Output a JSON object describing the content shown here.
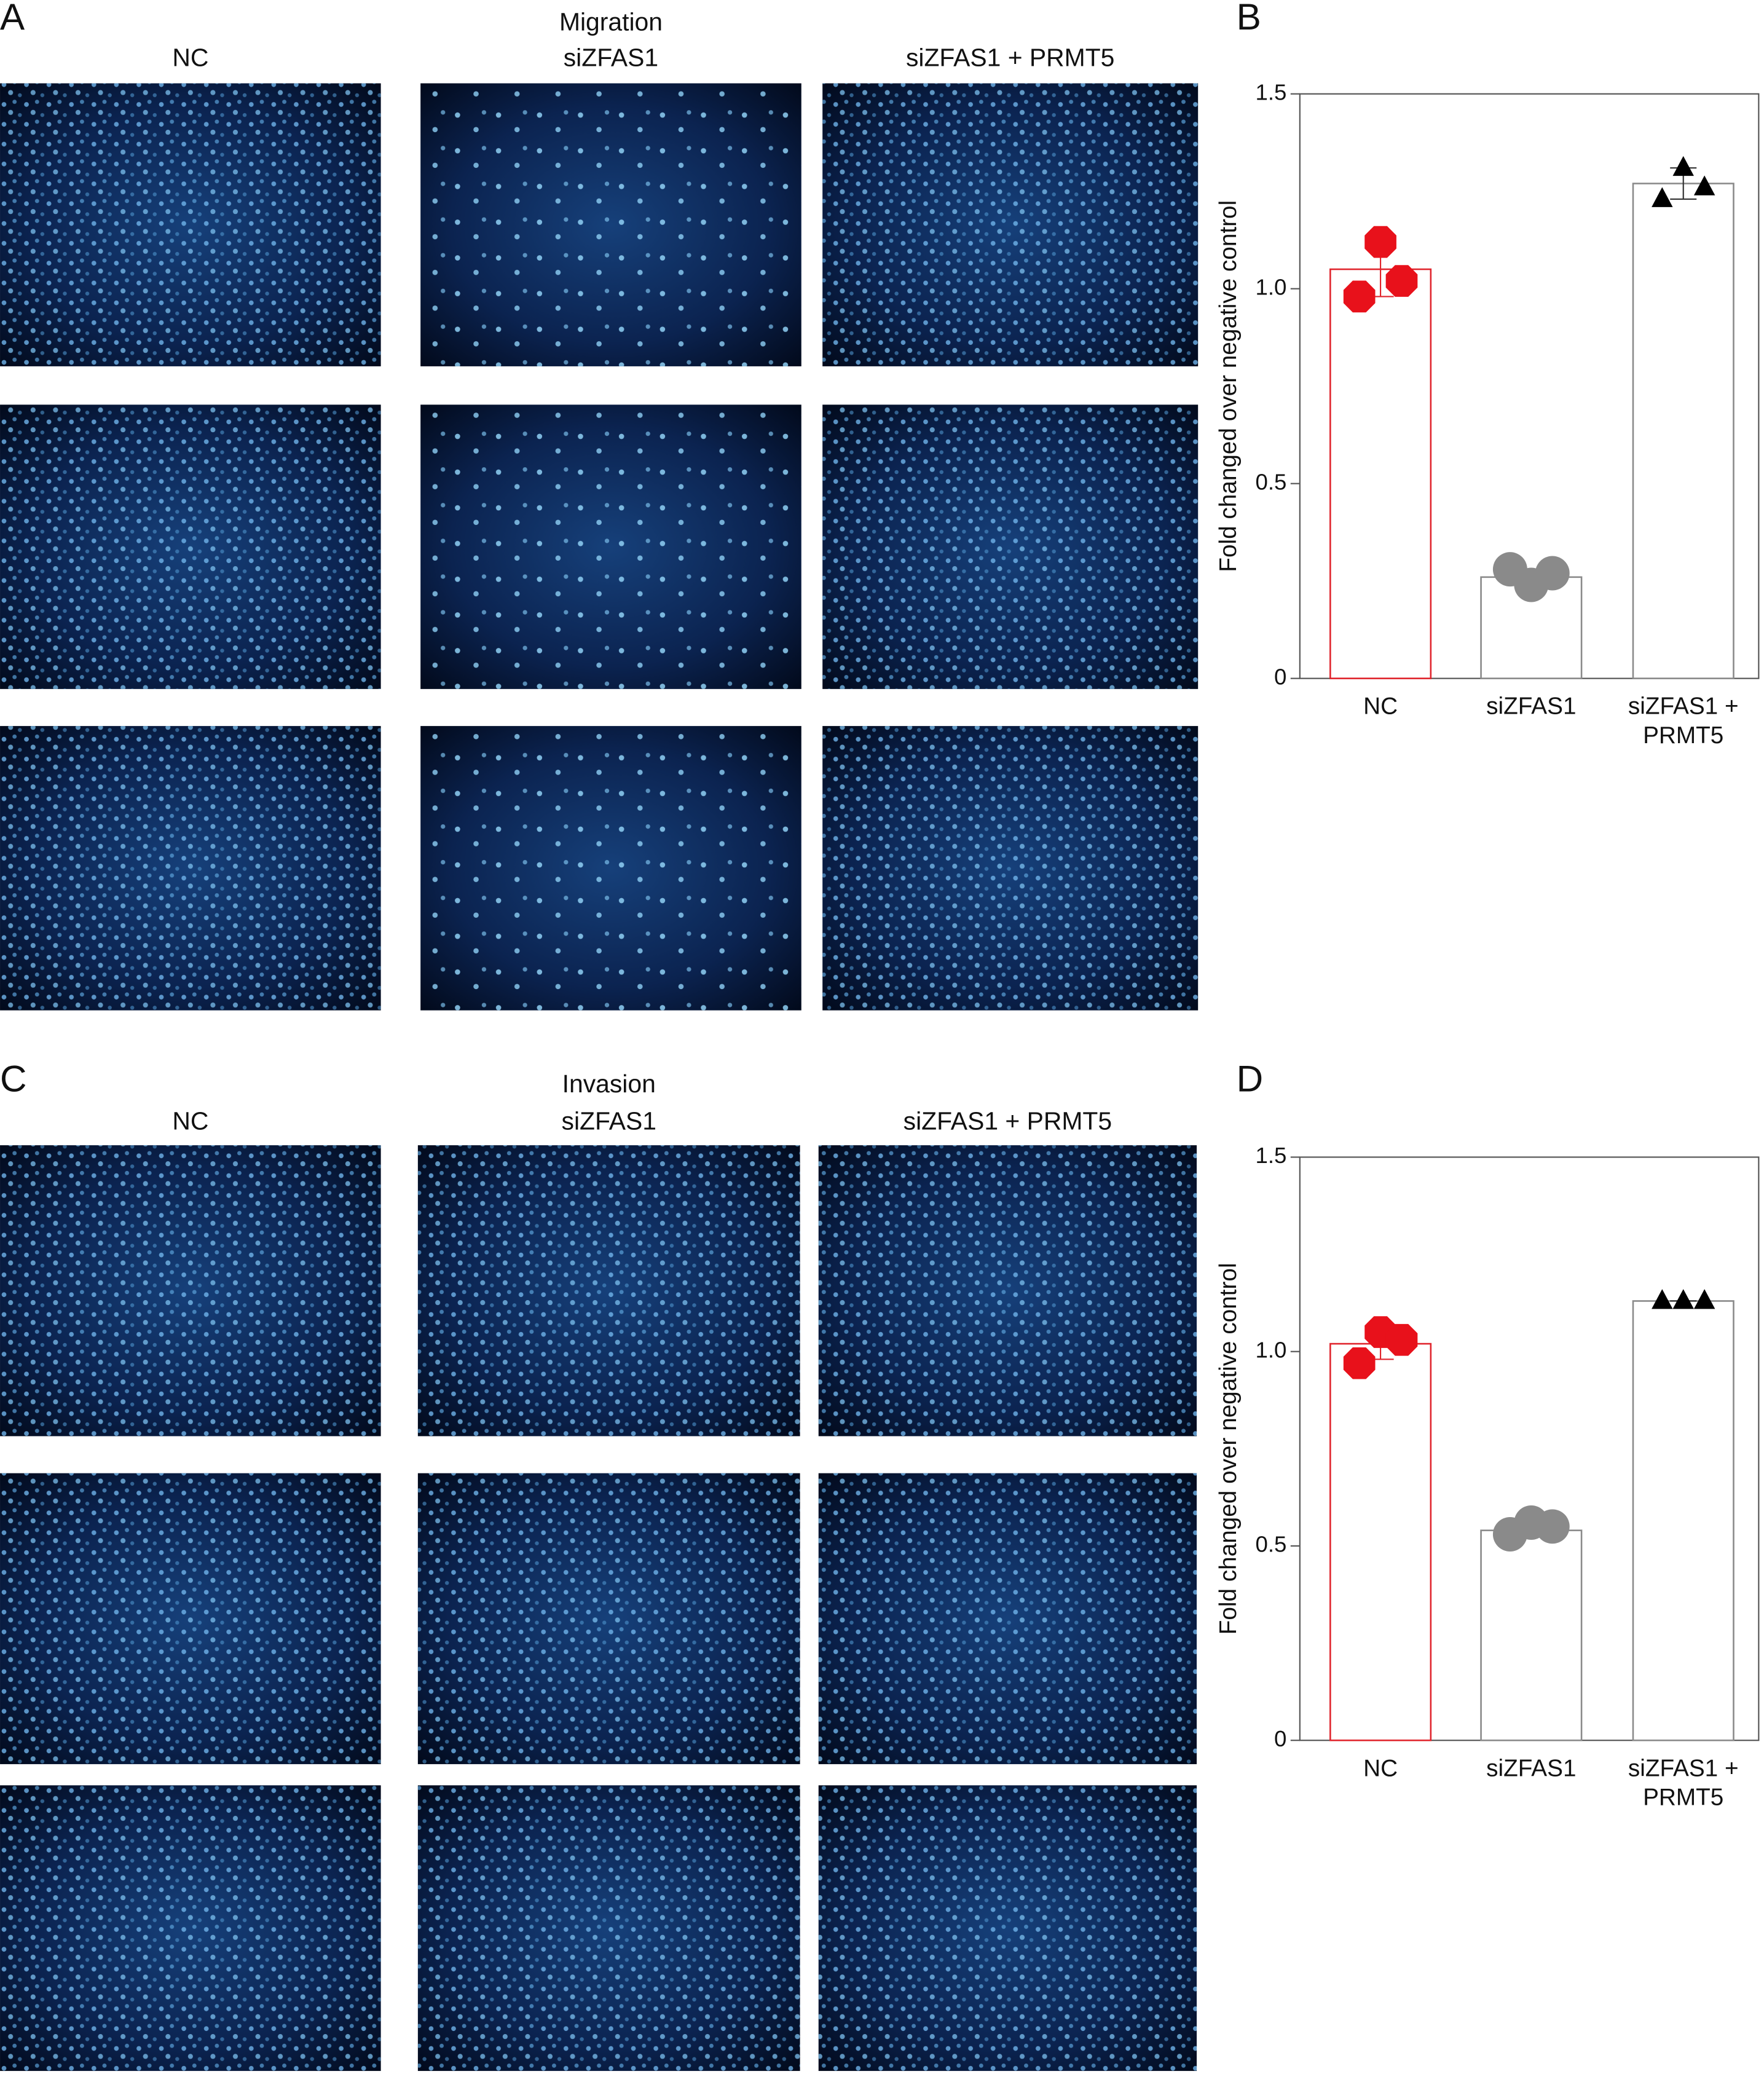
{
  "panels": [
    {
      "letter": "A",
      "title": "Migration",
      "columns": [
        "NC",
        "siZFAS1",
        "siZFAS1 + PRMT5"
      ]
    },
    {
      "letter": "C",
      "title": "Invasion",
      "columns": [
        "NC",
        "siZFAS1",
        "siZFAS1 + PRMT5"
      ]
    }
  ],
  "chart_data": [
    {
      "type": "bar",
      "letter": "B",
      "y_label": "Fold changed over negative control",
      "categories": [
        "NC",
        "siZFAS1",
        "siZFAS1 + PRMT5"
      ],
      "values": [
        1.05,
        0.26,
        1.27
      ],
      "errors": [
        0.07,
        0.02,
        0.04
      ],
      "points": [
        [
          0.98,
          1.12,
          1.02
        ],
        [
          0.28,
          0.24,
          0.27
        ],
        [
          1.23,
          1.31,
          1.26
        ]
      ],
      "colors": [
        "#e0242c",
        "#8a8a8a",
        "#8a8a8a"
      ],
      "point_colors": [
        "#e8111b",
        "#8a8a8a",
        "#000000"
      ],
      "markers": [
        "octagon",
        "circle",
        "triangle"
      ],
      "ylim": [
        0,
        1.5
      ],
      "yticks": [
        0,
        0.5,
        {
          "value": 1,
          "label": "1.0"
        },
        1.5
      ]
    },
    {
      "type": "bar",
      "letter": "D",
      "y_label": "Fold changed over negative control",
      "categories": [
        "NC",
        "siZFAS1",
        "siZFAS1 + PRMT5"
      ],
      "values": [
        1.02,
        0.54,
        1.13
      ],
      "errors": [
        0.04,
        0.01,
        0.0
      ],
      "points": [
        [
          0.97,
          1.05,
          1.03
        ],
        [
          0.53,
          0.56,
          0.55
        ],
        [
          1.13,
          1.13,
          1.13
        ]
      ],
      "colors": [
        "#e0242c",
        "#8a8a8a",
        "#8a8a8a"
      ],
      "point_colors": [
        "#e8111b",
        "#8a8a8a",
        "#000000"
      ],
      "markers": [
        "octagon",
        "circle",
        "triangle"
      ],
      "ylim": [
        0,
        1.5
      ],
      "yticks": [
        0,
        0.5,
        {
          "value": 1,
          "label": "1.0"
        },
        1.5
      ]
    }
  ]
}
